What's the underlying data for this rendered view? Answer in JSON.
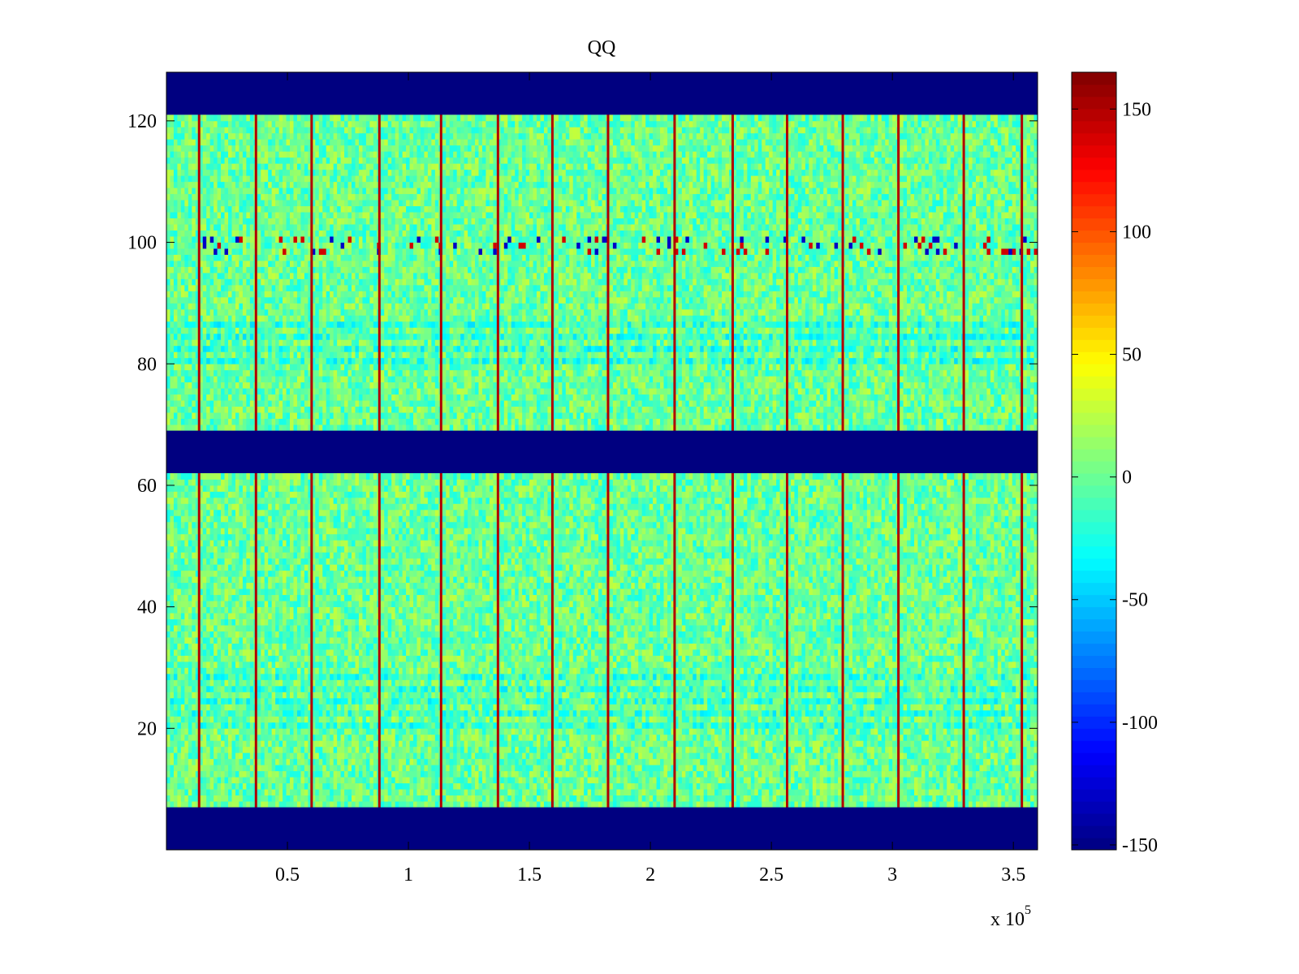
{
  "chart_data": {
    "type": "heatmap",
    "title": "QQ",
    "xlabel": "",
    "ylabel": "",
    "x_exponent_label": "x 10",
    "x_exponent_power": "5",
    "xlim": [
      0,
      360000
    ],
    "ylim": [
      0,
      128
    ],
    "x_ticks": [
      {
        "value": 50000,
        "label": "0.5"
      },
      {
        "value": 100000,
        "label": "1"
      },
      {
        "value": 150000,
        "label": "1.5"
      },
      {
        "value": 200000,
        "label": "2"
      },
      {
        "value": 250000,
        "label": "2.5"
      },
      {
        "value": 300000,
        "label": "3"
      },
      {
        "value": 350000,
        "label": "3.5"
      }
    ],
    "y_ticks": [
      {
        "value": 20,
        "label": "20"
      },
      {
        "value": 40,
        "label": "40"
      },
      {
        "value": 60,
        "label": "60"
      },
      {
        "value": 80,
        "label": "80"
      },
      {
        "value": 100,
        "label": "100"
      },
      {
        "value": 120,
        "label": "120"
      }
    ],
    "colorbar": {
      "colormap": "jet",
      "clim": [
        -152,
        165
      ],
      "ticks": [
        {
          "value": 150,
          "label": "150"
        },
        {
          "value": 100,
          "label": "100"
        },
        {
          "value": 50,
          "label": "50"
        },
        {
          "value": 0,
          "label": "0"
        },
        {
          "value": -50,
          "label": "-50"
        },
        {
          "value": -100,
          "label": "-100"
        },
        {
          "value": -150,
          "label": "-150"
        }
      ]
    },
    "masked_rows": [
      [
        0,
        7
      ],
      [
        62,
        69
      ],
      [
        121,
        128
      ]
    ],
    "masked_value": -152,
    "background_value": 0,
    "vertical_stripes_x": [
      13500,
      37000,
      60000,
      88000,
      113500,
      137000,
      159500,
      182500,
      210000,
      234000,
      256500,
      279500,
      302500,
      329500,
      353500
    ],
    "stripe_value": 150,
    "blue_rows": [
      {
        "y_range": [
          80,
          88
        ],
        "value": -35
      },
      {
        "y_range": [
          20,
          30
        ],
        "value": -30
      }
    ],
    "spike_row_y": 99,
    "grid": false
  }
}
